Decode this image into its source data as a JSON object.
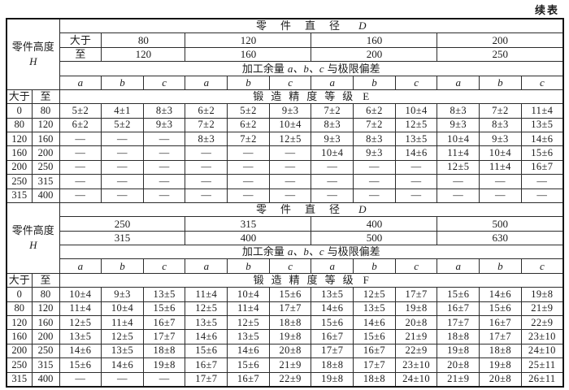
{
  "continued_label": "续表",
  "colors": {
    "ink": "#1c1c1c",
    "paper": "#ffffff",
    "border": "#2b2b2b"
  },
  "labels": {
    "part_height": "零件高度",
    "part_height_symbol": "H",
    "part_diameter": "零件直径",
    "part_diameter_symbol": "D",
    "over": "大于",
    "to": "至",
    "allowance_prefix": "加工余量",
    "allowance_abc": "a、b、c",
    "allowance_suffix": "与极限偏差",
    "grade_prefix": "锻造精度等级"
  },
  "columns_abc": [
    "a",
    "b",
    "c",
    "a",
    "b",
    "c",
    "a",
    "b",
    "c",
    "a",
    "b",
    "c"
  ],
  "sections": [
    {
      "grade": "E",
      "diameter_over": [
        "80",
        "120",
        "160",
        "200"
      ],
      "diameter_to": [
        "120",
        "160",
        "200",
        "250"
      ],
      "rows": [
        {
          "over": "0",
          "to": "80",
          "values": [
            "5±2",
            "4±1",
            "8±3",
            "6±2",
            "5±2",
            "9±3",
            "7±2",
            "6±2",
            "10±4",
            "8±3",
            "7±2",
            "11±4"
          ]
        },
        {
          "over": "80",
          "to": "120",
          "values": [
            "6±2",
            "5±2",
            "9±3",
            "7±2",
            "6±2",
            "10±4",
            "8±3",
            "7±2",
            "12±5",
            "9±3",
            "8±3",
            "13±5"
          ]
        },
        {
          "over": "120",
          "to": "160",
          "values": [
            "—",
            "—",
            "—",
            "8±3",
            "7±2",
            "12±5",
            "9±3",
            "8±3",
            "13±5",
            "10±4",
            "9±3",
            "14±6"
          ]
        },
        {
          "over": "160",
          "to": "200",
          "values": [
            "—",
            "—",
            "—",
            "—",
            "—",
            "—",
            "10±4",
            "9±3",
            "14±6",
            "11±4",
            "10±4",
            "15±6"
          ]
        },
        {
          "over": "200",
          "to": "250",
          "values": [
            "—",
            "—",
            "—",
            "—",
            "—",
            "—",
            "—",
            "—",
            "—",
            "12±5",
            "11±4",
            "16±7"
          ]
        },
        {
          "over": "250",
          "to": "315",
          "values": [
            "—",
            "—",
            "—",
            "—",
            "—",
            "—",
            "—",
            "—",
            "—",
            "—",
            "—",
            "—"
          ]
        },
        {
          "over": "315",
          "to": "400",
          "values": [
            "—",
            "—",
            "—",
            "—",
            "—",
            "—",
            "—",
            "—",
            "—",
            "—",
            "—",
            "—"
          ]
        }
      ]
    },
    {
      "grade": "F",
      "diameter_over": [
        "250",
        "315",
        "400",
        "500"
      ],
      "diameter_to": [
        "315",
        "400",
        "500",
        "630"
      ],
      "rows": [
        {
          "over": "0",
          "to": "80",
          "values": [
            "10±4",
            "9±3",
            "13±5",
            "11±4",
            "10±4",
            "15±6",
            "13±5",
            "12±5",
            "17±7",
            "15±6",
            "14±6",
            "19±8"
          ]
        },
        {
          "over": "80",
          "to": "120",
          "values": [
            "11±4",
            "10±4",
            "15±6",
            "12±5",
            "11±4",
            "17±7",
            "14±6",
            "13±5",
            "19±8",
            "16±7",
            "15±6",
            "21±9"
          ]
        },
        {
          "over": "120",
          "to": "160",
          "values": [
            "12±5",
            "11±4",
            "16±7",
            "13±5",
            "12±5",
            "18±8",
            "15±6",
            "14±6",
            "20±8",
            "17±7",
            "16±7",
            "22±9"
          ]
        },
        {
          "over": "160",
          "to": "200",
          "values": [
            "13±5",
            "12±5",
            "17±7",
            "14±6",
            "13±5",
            "19±8",
            "16±7",
            "15±6",
            "21±9",
            "18±8",
            "17±7",
            "23±10"
          ]
        },
        {
          "over": "200",
          "to": "250",
          "values": [
            "14±6",
            "13±5",
            "18±8",
            "15±6",
            "14±6",
            "20±8",
            "17±7",
            "16±7",
            "22±9",
            "19±8",
            "18±8",
            "24±10"
          ]
        },
        {
          "over": "250",
          "to": "315",
          "values": [
            "15±6",
            "14±6",
            "19±8",
            "16±7",
            "15±6",
            "21±9",
            "18±8",
            "17±7",
            "23±10",
            "20±8",
            "19±8",
            "25±11"
          ]
        },
        {
          "over": "315",
          "to": "400",
          "values": [
            "—",
            "—",
            "—",
            "17±7",
            "16±7",
            "22±9",
            "19±8",
            "18±8",
            "24±10",
            "21±9",
            "20±8",
            "26±11"
          ]
        }
      ]
    }
  ]
}
